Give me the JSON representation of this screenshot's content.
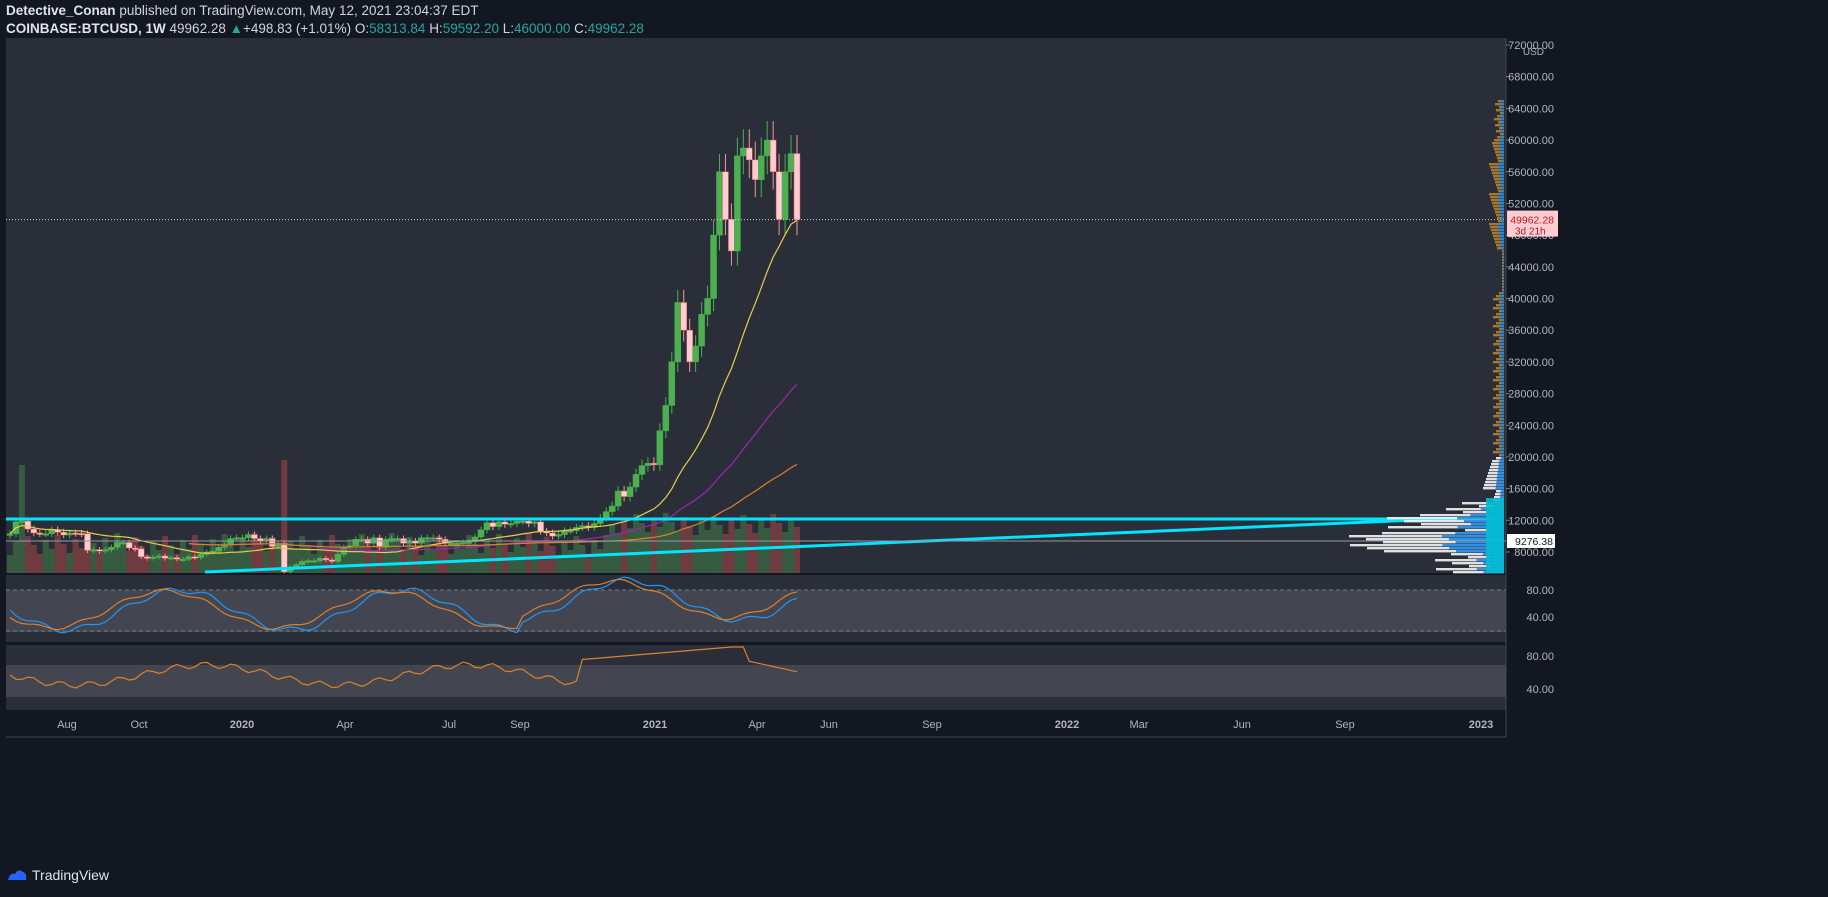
{
  "header": {
    "author": "Detective_Conan",
    "published": "published on TradingView.com, May 12, 2021 23:04:37 EDT",
    "symbol": "COINBASE:BTCUSD, 1W",
    "last": "49962.28",
    "change": "+498.83 (+1.01%)",
    "o_label": "O:",
    "open": "58313.84",
    "h_label": "H:",
    "high": "59592.20",
    "l_label": "L:",
    "low": "46000.00",
    "c_label": "C:",
    "close": "49962.28"
  },
  "footer": {
    "brand": "TradingView"
  },
  "colors": {
    "background": "#131722",
    "pane": "#2a2e39",
    "up": "#4caf50",
    "down": "#ffcdd2",
    "cyan": "#00e5ff",
    "ma_yellow": "#e5cf4a",
    "ma_purple": "#9c27b0",
    "ma_orange": "#d9822b",
    "rsi_blue": "#2196f3"
  },
  "chart_data": {
    "type": "candlestick",
    "symbol": "COINBASE:BTCUSD",
    "interval": "1W",
    "currency": "USD",
    "y_ticks": [
      "72000.00",
      "68000.00",
      "64000.00",
      "60000.00",
      "56000.00",
      "52000.00",
      "48000.00",
      "44000.00",
      "40000.00",
      "36000.00",
      "32000.00",
      "28000.00",
      "24000.00",
      "20000.00",
      "16000.00",
      "12000.00",
      "8000.00"
    ],
    "ylim": [
      5500,
      72000
    ],
    "x_ticks": [
      "Aug",
      "Oct",
      "2020",
      "Apr",
      "Jul",
      "Sep",
      "2021",
      "Apr",
      "Jun",
      "Sep",
      "2022",
      "Mar",
      "Jun",
      "Sep",
      "2023"
    ],
    "last_price_label": "49962.28",
    "countdown_label": "3d 21h",
    "poc_label": "9276.38",
    "horizontal_level": 12000,
    "weekly_closes": [
      10300,
      11800,
      11900,
      10900,
      10400,
      10300,
      10300,
      10800,
      10500,
      10150,
      10400,
      10350,
      10300,
      8200,
      8300,
      8100,
      8300,
      8600,
      9200,
      9200,
      8500,
      8400,
      7400,
      7200,
      7350,
      7500,
      7200,
      7300,
      7100,
      7100,
      7400,
      7300,
      7700,
      8000,
      8100,
      8600,
      8900,
      9700,
      9800,
      9800,
      10200,
      9700,
      9400,
      9700,
      8700,
      9100,
      5500,
      6100,
      6400,
      6800,
      6900,
      6900,
      7200,
      7000,
      6800,
      7700,
      8600,
      8800,
      9600,
      9600,
      9100,
      9800,
      8600,
      9600,
      9700,
      9700,
      9100,
      9400,
      9100,
      9800,
      9800,
      9800,
      9600,
      9100,
      9100,
      9100,
      9200,
      9300,
      9900,
      10800,
      11700,
      11200,
      11800,
      11500,
      11600,
      11900,
      11900,
      11600,
      11800,
      10600,
      10400,
      10000,
      10200,
      10700,
      10700,
      11100,
      11300,
      11100,
      11600,
      12300,
      13100,
      13800,
      15700,
      15000,
      16200,
      17800,
      18900,
      19200,
      19000,
      23300,
      26500,
      32000,
      39500,
      36000,
      32000,
      34000,
      38000,
      40000,
      48000,
      56000,
      50000,
      46000,
      58000,
      59000,
      57500,
      55000,
      58000,
      60000,
      56000,
      50000,
      56000,
      58300,
      49962
    ],
    "rsi_ticks": [
      "80.00",
      "40.00"
    ],
    "rsi2_ticks": [
      "80.00",
      "40.00"
    ]
  }
}
